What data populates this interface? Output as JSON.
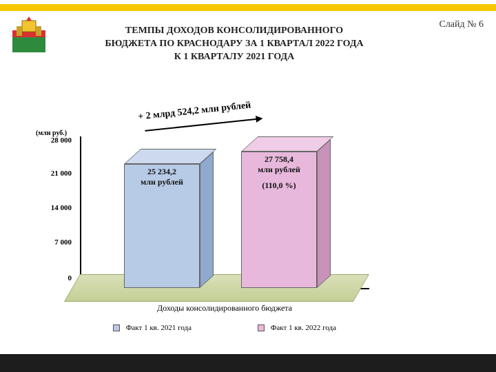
{
  "slide_number": "Слайд № 6",
  "title": {
    "line1": "ТЕМПЫ ДОХОДОВ КОНСОЛИДИРОВАННОГО",
    "line2": "БЮДЖЕТА ПО КРАСНОДАРУ ЗА 1 КВАРТАЛ 2022 ГОДА",
    "line3": "К 1 КВАРТАЛУ 2021 ГОДА"
  },
  "chart": {
    "type": "bar-3d",
    "y_axis_label": "(млн руб.)",
    "y_ticks": [
      "28 000",
      "21 000",
      "14 000",
      "7 000",
      "0"
    ],
    "y_max": 28000,
    "y_tick_step": 7000,
    "x_title": "Доходы консолидированного бюджета",
    "diff_text": "+ 2 млрд 524,2 млн рублей",
    "bars": [
      {
        "value": 25234.2,
        "label_value": "25 234,2",
        "label_unit": "млн рублей",
        "percent": "",
        "color_front": "#b7cae6",
        "color_top": "#cdd9ee",
        "color_side": "#8fa9cf"
      },
      {
        "value": 27758.4,
        "label_value": "27 758,4",
        "label_unit": "млн рублей",
        "percent": "(110,0 %)",
        "color_front": "#e7b8dc",
        "color_top": "#f0cde6",
        "color_side": "#c892bb"
      }
    ],
    "legend": [
      {
        "swatch": "#b7cae6",
        "text": "Факт 1 кв. 2021 года"
      },
      {
        "swatch": "#e7b8dc",
        "text": "Факт 1 кв. 2022 года"
      }
    ],
    "background_color": "#ffffff",
    "floor_color": "#cdd8a5",
    "bar_pixel_scale": 0.00714
  },
  "colors": {
    "accent_bar": "#f7c800",
    "bottom_bar": "#1d1d1d"
  }
}
